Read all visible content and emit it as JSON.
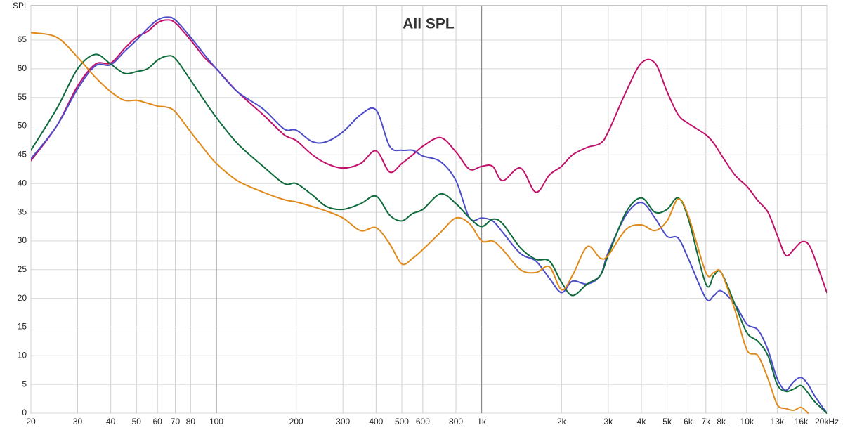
{
  "chart_data": {
    "type": "line",
    "title": "All SPL",
    "y_label": "SPL",
    "log_x": true,
    "grid": true,
    "xlim": [
      20,
      20000
    ],
    "ylim": [
      0,
      71
    ],
    "yticks": [
      0,
      5,
      10,
      15,
      20,
      25,
      30,
      35,
      40,
      45,
      50,
      55,
      60,
      65
    ],
    "xticks": [
      20,
      30,
      40,
      50,
      60,
      70,
      80,
      100,
      200,
      300,
      400,
      500,
      600,
      800,
      {
        "value": 1000,
        "label": "1k"
      },
      {
        "value": 2000,
        "label": "2k"
      },
      {
        "value": 3000,
        "label": "3k"
      },
      {
        "value": 4000,
        "label": "4k"
      },
      {
        "value": 5000,
        "label": "5k"
      },
      {
        "value": 6000,
        "label": "6k"
      },
      {
        "value": 7000,
        "label": "7k"
      },
      {
        "value": 8000,
        "label": "8k"
      },
      {
        "value": 10000,
        "label": "10k"
      },
      {
        "value": 13000,
        "label": "13k"
      },
      {
        "value": 16000,
        "label": "16k"
      },
      {
        "value": 20000,
        "label": "20kHz"
      }
    ],
    "x": [
      20,
      25,
      30,
      35,
      40,
      45,
      50,
      55,
      60,
      65,
      70,
      80,
      90,
      100,
      120,
      150,
      180,
      200,
      230,
      260,
      300,
      350,
      400,
      450,
      500,
      550,
      600,
      700,
      800,
      900,
      1000,
      1100,
      1200,
      1400,
      1600,
      1800,
      2000,
      2200,
      2500,
      2800,
      3000,
      3500,
      4000,
      4500,
      5000,
      5500,
      6000,
      7000,
      7500,
      8000,
      9000,
      10000,
      11000,
      12000,
      13000,
      14000,
      15000,
      16000,
      17000,
      18000,
      20000
    ],
    "series": [
      {
        "color": "#c0106a",
        "values": [
          44,
          50,
          57,
          60.8,
          61,
          63.5,
          65.5,
          66.5,
          68,
          68.5,
          68,
          65,
          62,
          60,
          56,
          52,
          48.5,
          47.5,
          45,
          43.5,
          42.7,
          43.5,
          45.7,
          42,
          43.5,
          45,
          46.5,
          48,
          45.5,
          42.5,
          43,
          43,
          40.5,
          42.7,
          38.5,
          41.5,
          43,
          45,
          46.3,
          47,
          49,
          56,
          61,
          61,
          56,
          52,
          50.5,
          48.5,
          47,
          45,
          41.5,
          39.5,
          37,
          35,
          31,
          27.5,
          28.5,
          29.8,
          29.5,
          27,
          21
        ]
      },
      {
        "color": "#4c4cc8",
        "values": [
          44.3,
          50,
          56.5,
          60.5,
          60.7,
          63,
          65,
          67,
          68.5,
          69,
          68.5,
          65.5,
          62.5,
          60,
          56,
          53,
          49.5,
          49.3,
          47.3,
          47.3,
          49,
          52,
          52.8,
          46.5,
          45.8,
          45.8,
          44.8,
          43.8,
          40.5,
          34,
          34,
          33.5,
          31.5,
          27.8,
          26.5,
          23.5,
          21,
          23,
          22.5,
          24,
          28,
          34.5,
          36.7,
          34,
          30.8,
          30.5,
          27,
          20,
          20.5,
          21.3,
          19,
          15.5,
          14.5,
          11,
          6,
          4,
          5.5,
          6.2,
          5,
          3,
          0
        ]
      },
      {
        "color": "#0e6a3a",
        "values": [
          45.8,
          53,
          60,
          62.5,
          60.8,
          59.2,
          59.5,
          60,
          61.5,
          62.2,
          61.8,
          58,
          54.5,
          51.5,
          47,
          43,
          40,
          40,
          38,
          36,
          35.5,
          36.5,
          37.8,
          34.5,
          33.5,
          34.8,
          35.5,
          38.2,
          36.5,
          34,
          32.5,
          33.8,
          33,
          28.8,
          26.8,
          26.5,
          22.8,
          20.5,
          22.5,
          24,
          27.5,
          35,
          37.5,
          35,
          35.5,
          37.5,
          34,
          22.5,
          24,
          24.5,
          19,
          14,
          12.5,
          10,
          5,
          3.8,
          4.2,
          4.8,
          3.5,
          2,
          0
        ]
      },
      {
        "color": "#e08a1a",
        "values": [
          66.3,
          65.5,
          62,
          58.5,
          56,
          54.5,
          54.5,
          54,
          53.5,
          53.3,
          52.5,
          49,
          46,
          43.5,
          40.5,
          38.5,
          37.2,
          36.8,
          36,
          35.2,
          34,
          31.8,
          32.3,
          29.5,
          26,
          27,
          28.5,
          31.5,
          34,
          33,
          30,
          30,
          28.5,
          25,
          24.5,
          25.5,
          21.5,
          24,
          29,
          27,
          27.5,
          32,
          32.8,
          31.8,
          33.5,
          37.3,
          34.5,
          24.5,
          24.5,
          24.5,
          18,
          11,
          10,
          6,
          1.5,
          0.8,
          0.5,
          1,
          0,
          null,
          null
        ]
      }
    ]
  }
}
